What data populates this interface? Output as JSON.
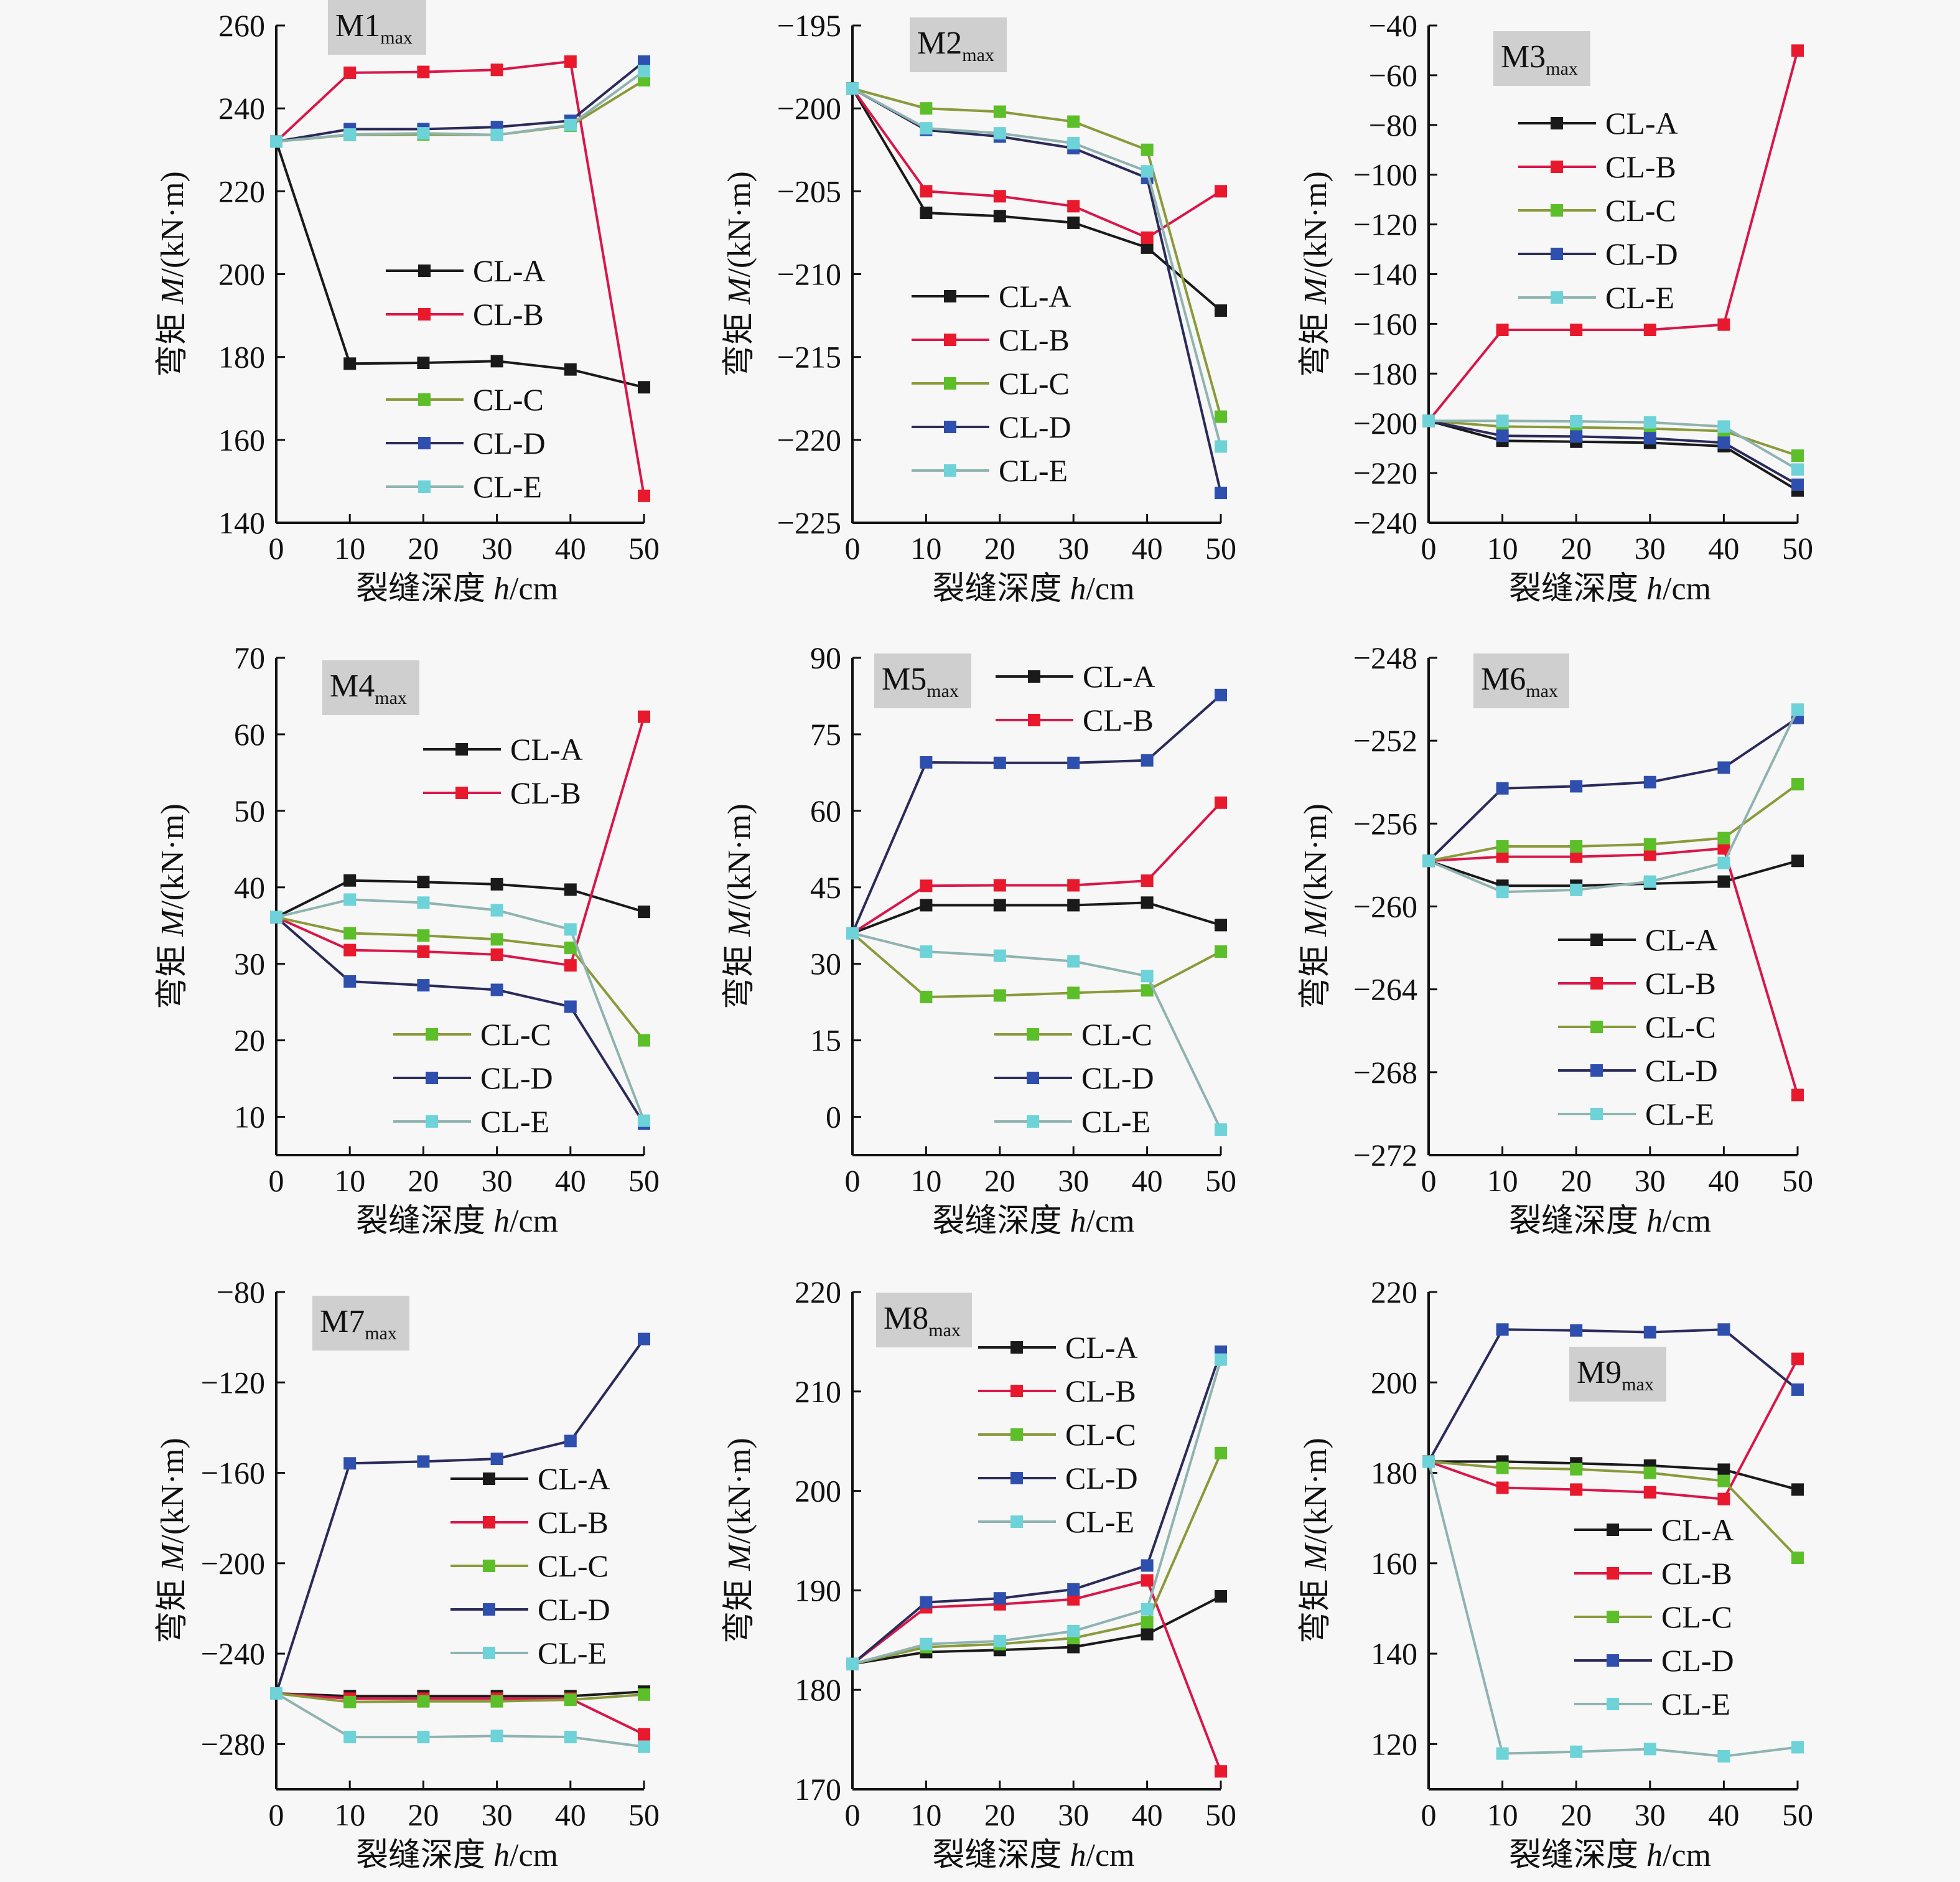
{
  "figure": {
    "x_axis_title_cn": "裂缝深度 ",
    "x_axis_title_var": "h",
    "x_axis_title_unit": "/cm",
    "y_axis_title_cn": "弯矩 ",
    "y_axis_title_var": "M",
    "y_axis_title_unit": "/(kN·m)",
    "series_names": [
      "CL-A",
      "CL-B",
      "CL-C",
      "CL-D",
      "CL-E"
    ],
    "series_styles": {
      "CL-A": {
        "marker": "#1a1a1a",
        "line": "#1a1a1a"
      },
      "CL-B": {
        "marker": "#e8192c",
        "line": "#d8174a"
      },
      "CL-C": {
        "marker": "#5cbf2a",
        "line": "#8a9a3a"
      },
      "CL-D": {
        "marker": "#2f4fae",
        "line": "#2b2b5a"
      },
      "CL-E": {
        "marker": "#6ed3d8",
        "line": "#8fb3b0"
      }
    }
  },
  "chart_data": [
    {
      "type": "line",
      "title": "M1",
      "title_sub": "max",
      "xlabel": "裂缝深度 h/cm",
      "ylabel": "弯矩 M/(kN·m)",
      "x": [
        0,
        10,
        20,
        30,
        40,
        50
      ],
      "xlim": [
        0,
        50
      ],
      "ylim": [
        140,
        260
      ],
      "yticks": [
        140,
        160,
        180,
        200,
        220,
        240,
        260
      ],
      "ytick_labels": [
        "140",
        "160",
        "180",
        "200",
        "220",
        "240",
        "260"
      ],
      "legend": "center-right-split",
      "series": [
        {
          "name": "CL-A",
          "values": [
            232,
            178.4,
            178.6,
            179.0,
            177.0,
            172.7
          ]
        },
        {
          "name": "CL-B",
          "values": [
            232,
            248.6,
            248.8,
            249.3,
            251.3,
            146.5
          ]
        },
        {
          "name": "CL-C",
          "values": [
            232,
            233.6,
            233.7,
            233.6,
            235.8,
            246.8
          ]
        },
        {
          "name": "CL-D",
          "values": [
            232,
            235.0,
            235.0,
            235.5,
            237.0,
            251.3
          ]
        },
        {
          "name": "CL-E",
          "values": [
            232,
            233.7,
            234.0,
            233.6,
            236.0,
            249.0
          ]
        }
      ]
    },
    {
      "type": "line",
      "title": "M2",
      "title_sub": "max",
      "xlabel": "裂缝深度 h/cm",
      "ylabel": "弯矩 M/(kN·m)",
      "x": [
        0,
        10,
        20,
        30,
        40,
        50
      ],
      "xlim": [
        0,
        50
      ],
      "ylim": [
        -225,
        -195
      ],
      "yticks": [
        -225,
        -220,
        -215,
        -210,
        -205,
        -200,
        -195
      ],
      "ytick_labels": [
        "−225",
        "−220",
        "−215",
        "−210",
        "−205",
        "−200",
        "−195"
      ],
      "legend": "center-left",
      "series": [
        {
          "name": "CL-A",
          "values": [
            -198.8,
            -206.3,
            -206.5,
            -206.9,
            -208.4,
            -212.2
          ]
        },
        {
          "name": "CL-B",
          "values": [
            -198.8,
            -205.0,
            -205.3,
            -205.9,
            -207.8,
            -205.0
          ]
        },
        {
          "name": "CL-C",
          "values": [
            -198.8,
            -200.0,
            -200.2,
            -200.8,
            -202.5,
            -218.6
          ]
        },
        {
          "name": "CL-D",
          "values": [
            -198.8,
            -201.3,
            -201.7,
            -202.4,
            -204.2,
            -223.2
          ]
        },
        {
          "name": "CL-E",
          "values": [
            -198.8,
            -201.2,
            -201.5,
            -202.1,
            -203.8,
            -220.4
          ]
        }
      ]
    },
    {
      "type": "line",
      "title": "M3",
      "title_sub": "max",
      "xlabel": "裂缝深度 h/cm",
      "ylabel": "弯矩 M/(kN·m)",
      "x": [
        0,
        10,
        20,
        30,
        40,
        50
      ],
      "xlim": [
        0,
        50
      ],
      "ylim": [
        -240,
        -40
      ],
      "yticks": [
        -240,
        -220,
        -200,
        -180,
        -160,
        -140,
        -120,
        -100,
        -80,
        -60,
        -40
      ],
      "ytick_labels": [
        "−240",
        "−220",
        "−200",
        "−180",
        "−160",
        "−140",
        "−120",
        "−100",
        "−80",
        "−60",
        "−40"
      ],
      "legend": "upper-center",
      "series": [
        {
          "name": "CL-A",
          "values": [
            -199,
            -207.0,
            -207.4,
            -207.8,
            -209.2,
            -227.0
          ]
        },
        {
          "name": "CL-B",
          "values": [
            -199,
            -162.4,
            -162.4,
            -162.4,
            -160.3,
            -50.1
          ]
        },
        {
          "name": "CL-C",
          "values": [
            -199,
            -201.3,
            -201.6,
            -202.1,
            -203.1,
            -213.0
          ]
        },
        {
          "name": "CL-D",
          "values": [
            -199,
            -205.0,
            -205.3,
            -206.0,
            -207.8,
            -224.7
          ]
        },
        {
          "name": "CL-E",
          "values": [
            -199,
            -199.0,
            -199.2,
            -199.6,
            -201.3,
            -218.6
          ]
        }
      ]
    },
    {
      "type": "line",
      "title": "M4",
      "title_sub": "max",
      "xlabel": "裂缝深度 h/cm",
      "ylabel": "弯矩 M/(kN·m)",
      "x": [
        0,
        10,
        20,
        30,
        40,
        50
      ],
      "xlim": [
        0,
        50
      ],
      "ylim": [
        5,
        70
      ],
      "yticks": [
        10,
        20,
        30,
        40,
        50,
        60,
        70
      ],
      "ytick_labels": [
        "10",
        "20",
        "30",
        "40",
        "50",
        "60",
        "70"
      ],
      "legend": "split-top-bottom",
      "series": [
        {
          "name": "CL-A",
          "values": [
            36.1,
            40.9,
            40.7,
            40.4,
            39.7,
            36.8
          ]
        },
        {
          "name": "CL-B",
          "values": [
            36.1,
            31.8,
            31.6,
            31.2,
            29.8,
            62.3
          ]
        },
        {
          "name": "CL-C",
          "values": [
            36.1,
            34.0,
            33.7,
            33.2,
            32.1,
            20.0
          ]
        },
        {
          "name": "CL-D",
          "values": [
            36.1,
            27.7,
            27.2,
            26.6,
            24.4,
            9.1
          ]
        },
        {
          "name": "CL-E",
          "values": [
            36.1,
            38.4,
            38.0,
            37.0,
            34.5,
            9.5
          ]
        }
      ]
    },
    {
      "type": "line",
      "title": "M5",
      "title_sub": "max",
      "xlabel": "裂缝深度 h/cm",
      "ylabel": "弯矩 M/(kN·m)",
      "x": [
        0,
        10,
        20,
        30,
        40,
        50
      ],
      "xlim": [
        0,
        50
      ],
      "ylim": [
        -7.5,
        90
      ],
      "yticks": [
        0,
        15,
        30,
        45,
        60,
        75,
        90
      ],
      "ytick_labels": [
        "0",
        "15",
        "30",
        "45",
        "60",
        "75",
        "90"
      ],
      "legend": "split-top-bottom",
      "series": [
        {
          "name": "CL-A",
          "values": [
            36.0,
            41.5,
            41.5,
            41.5,
            42.0,
            37.6
          ]
        },
        {
          "name": "CL-B",
          "values": [
            36.0,
            45.3,
            45.4,
            45.4,
            46.3,
            61.6
          ]
        },
        {
          "name": "CL-C",
          "values": [
            36.0,
            23.5,
            23.8,
            24.3,
            24.8,
            32.4
          ]
        },
        {
          "name": "CL-D",
          "values": [
            36.0,
            69.5,
            69.4,
            69.4,
            69.9,
            82.7
          ]
        },
        {
          "name": "CL-E",
          "values": [
            36.0,
            32.4,
            31.6,
            30.5,
            27.6,
            -2.5
          ]
        }
      ]
    },
    {
      "type": "line",
      "title": "M6",
      "title_sub": "max",
      "xlabel": "裂缝深度 h/cm",
      "ylabel": "弯矩 M/(kN·m)",
      "x": [
        0,
        10,
        20,
        30,
        40,
        50
      ],
      "xlim": [
        0,
        50
      ],
      "ylim": [
        -272,
        -248
      ],
      "yticks": [
        -272,
        -268,
        -264,
        -260,
        -256,
        -252,
        -248
      ],
      "ytick_labels": [
        "−272",
        "−268",
        "−264",
        "−260",
        "−256",
        "−252",
        "−248"
      ],
      "legend": "lower-center",
      "series": [
        {
          "name": "CL-A",
          "values": [
            -257.8,
            -259.0,
            -259.0,
            -258.9,
            -258.8,
            -257.8
          ]
        },
        {
          "name": "CL-B",
          "values": [
            -257.8,
            -257.6,
            -257.6,
            -257.5,
            -257.2,
            -269.1
          ]
        },
        {
          "name": "CL-C",
          "values": [
            -257.8,
            -257.1,
            -257.1,
            -257.0,
            -256.7,
            -254.1
          ]
        },
        {
          "name": "CL-D",
          "values": [
            -257.8,
            -254.3,
            -254.2,
            -254.0,
            -253.3,
            -250.9
          ]
        },
        {
          "name": "CL-E",
          "values": [
            -257.8,
            -259.3,
            -259.2,
            -258.8,
            -257.9,
            -250.5
          ]
        }
      ]
    },
    {
      "type": "line",
      "title": "M7",
      "title_sub": "max",
      "xlabel": "裂缝深度 h/cm",
      "ylabel": "弯矩 M/(kN·m)",
      "x": [
        0,
        10,
        20,
        30,
        40,
        50
      ],
      "xlim": [
        0,
        50
      ],
      "ylim": [
        -300,
        -80
      ],
      "yticks": [
        -280,
        -240,
        -200,
        -160,
        -120,
        -80
      ],
      "ytick_labels": [
        "−280",
        "−240",
        "−200",
        "−160",
        "−120",
        "−80"
      ],
      "legend": "center-right",
      "series": [
        {
          "name": "CL-A",
          "values": [
            -257.6,
            -258.8,
            -258.8,
            -258.8,
            -258.8,
            -256.8
          ]
        },
        {
          "name": "CL-B",
          "values": [
            -257.6,
            -259.9,
            -259.9,
            -259.9,
            -259.9,
            -275.7
          ]
        },
        {
          "name": "CL-C",
          "values": [
            -257.6,
            -261.4,
            -261.1,
            -261.1,
            -260.4,
            -258.1
          ]
        },
        {
          "name": "CL-D",
          "values": [
            -257.6,
            -155.8,
            -155.0,
            -153.8,
            -145.9,
            -100.8
          ]
        },
        {
          "name": "CL-E",
          "values": [
            -257.6,
            -276.9,
            -276.9,
            -276.4,
            -276.9,
            -281.2
          ]
        }
      ]
    },
    {
      "type": "line",
      "title": "M8",
      "title_sub": "max",
      "xlabel": "裂缝深度 h/cm",
      "ylabel": "弯矩 M/(kN·m)",
      "x": [
        0,
        10,
        20,
        30,
        40,
        50
      ],
      "xlim": [
        0,
        50
      ],
      "ylim": [
        170,
        220
      ],
      "yticks": [
        170,
        180,
        190,
        200,
        210,
        220
      ],
      "ytick_labels": [
        "170",
        "180",
        "190",
        "200",
        "210",
        "220"
      ],
      "legend": "upper-center",
      "series": [
        {
          "name": "CL-A",
          "values": [
            182.6,
            183.8,
            184.0,
            184.3,
            185.6,
            189.4
          ]
        },
        {
          "name": "CL-B",
          "values": [
            182.6,
            188.3,
            188.6,
            189.1,
            191.0,
            171.8
          ]
        },
        {
          "name": "CL-C",
          "values": [
            182.6,
            184.3,
            184.6,
            185.2,
            186.8,
            203.8
          ]
        },
        {
          "name": "CL-D",
          "values": [
            182.6,
            188.8,
            189.2,
            190.1,
            192.5,
            214.0
          ]
        },
        {
          "name": "CL-E",
          "values": [
            182.6,
            184.6,
            184.9,
            185.9,
            188.1,
            213.2
          ]
        }
      ]
    },
    {
      "type": "line",
      "title": "M9",
      "title_sub": "max",
      "xlabel": "裂缝深度 h/cm",
      "ylabel": "弯矩 M/(kN·m)",
      "x": [
        0,
        10,
        20,
        30,
        40,
        50
      ],
      "xlim": [
        0,
        50
      ],
      "ylim": [
        110,
        220
      ],
      "yticks": [
        120,
        140,
        160,
        180,
        200,
        220
      ],
      "ytick_labels": [
        "120",
        "140",
        "160",
        "180",
        "200",
        "220"
      ],
      "legend": "center-right",
      "series": [
        {
          "name": "CL-A",
          "values": [
            182.5,
            182.5,
            182.1,
            181.6,
            180.7,
            176.3
          ]
        },
        {
          "name": "CL-B",
          "values": [
            182.5,
            176.7,
            176.3,
            175.7,
            174.2,
            205.2
          ]
        },
        {
          "name": "CL-C",
          "values": [
            182.5,
            181.1,
            180.8,
            180.0,
            178.2,
            161.2
          ]
        },
        {
          "name": "CL-D",
          "values": [
            182.5,
            211.7,
            211.5,
            211.1,
            211.7,
            198.4
          ]
        },
        {
          "name": "CL-E",
          "values": [
            182.5,
            117.9,
            118.3,
            118.9,
            117.3,
            119.3
          ]
        }
      ]
    }
  ],
  "xtick_labels": [
    "0",
    "10",
    "20",
    "30",
    "40",
    "50"
  ]
}
